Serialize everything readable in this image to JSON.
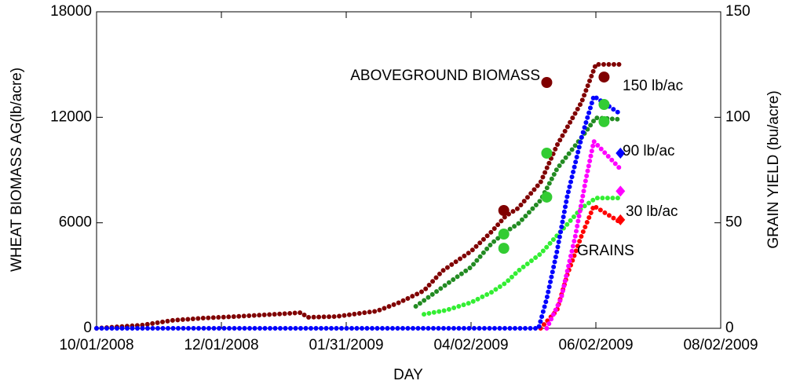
{
  "chart_data": {
    "type": "line",
    "xlabel": "DAY",
    "ylabel": "WHEAT BIOMASS AG(lb/acre)",
    "y2label": "GRAIN YIELD (bu/acre)",
    "xlim": [
      "10/01/2008",
      "08/02/2009"
    ],
    "xticks": [
      "10/01/2008",
      "12/01/2008",
      "01/31/2009",
      "04/02/2009",
      "06/02/2009",
      "08/02/2009"
    ],
    "ylim": [
      0,
      18000
    ],
    "yticks": [
      0,
      6000,
      12000,
      18000
    ],
    "y2lim": [
      0,
      150
    ],
    "y2ticks": [
      0,
      50,
      100,
      150
    ],
    "annotations": [
      "ABOVEGROUND BIOMASS",
      "150 lb/ac",
      "90 lb/ac",
      "30 lb/ac",
      "GRAINS"
    ],
    "series": [
      {
        "color": "#800000",
        "style": "dots",
        "axis": "y",
        "x": [
          "10/01/2008",
          "10/23/2008",
          "11/07/2008",
          "11/22/2008",
          "12/08/2008",
          "12/27/2008",
          "01/09/2009",
          "01/12/2009",
          "01/26/2009",
          "02/15/2009",
          "02/26/2009",
          "03/10/2009",
          "03/19/2009",
          "04/02/2009",
          "04/12/2009",
          "04/19/2009",
          "04/25/2009",
          "05/06/2009",
          "05/14/2009",
          "05/26/2009",
          "06/02/2009",
          "06/14/2009"
        ],
        "values": [
          0,
          180,
          450,
          580,
          670,
          800,
          890,
          625,
          670,
          980,
          1470,
          2140,
          3260,
          4380,
          5490,
          6390,
          6830,
          8310,
          10410,
          12860,
          15010,
          15010
        ]
      },
      {
        "color": "#228b22",
        "style": "dots",
        "axis": "y",
        "x": [
          "03/06/2009",
          "03/21/2009",
          "04/02/2009",
          "04/12/2009",
          "04/19/2009",
          "04/25/2009",
          "05/06/2009",
          "05/14/2009",
          "05/26/2009",
          "06/02/2009",
          "06/14/2009"
        ],
        "values": [
          1250,
          2500,
          3480,
          4820,
          5490,
          5940,
          7280,
          9070,
          10850,
          11970,
          11880
        ]
      },
      {
        "color": "#33ee33",
        "style": "dots",
        "axis": "y",
        "x": [
          "03/10/2009",
          "03/21/2009",
          "04/02/2009",
          "04/12/2009",
          "04/19/2009",
          "04/25/2009",
          "05/06/2009",
          "05/14/2009",
          "05/26/2009",
          "06/02/2009",
          "06/14/2009"
        ],
        "values": [
          800,
          1030,
          1470,
          2050,
          2590,
          3260,
          4240,
          5270,
          6830,
          7410,
          7410
        ]
      },
      {
        "color": "#ff0000",
        "style": "dots",
        "axis": "y2",
        "x": [
          "05/06/2009",
          "05/14/2009",
          "05/19/2009",
          "05/26/2009",
          "06/01/2009",
          "06/14/2009"
        ],
        "values": [
          0,
          8.6,
          25.3,
          43.9,
          58,
          50.2
        ]
      },
      {
        "color": "#ff00ff",
        "style": "dots",
        "axis": "y2",
        "x": [
          "05/09/2009",
          "05/16/2009",
          "05/23/2009",
          "05/28/2009",
          "06/01/2009",
          "06/14/2009"
        ],
        "values": [
          0,
          14.1,
          43.9,
          70,
          88.6,
          75.5
        ]
      },
      {
        "color": "#0000ff",
        "style": "dots",
        "axis": "y2",
        "x": [
          "10/01/2008",
          "05/05/2009",
          "05/09/2009",
          "05/14/2009",
          "05/19/2009",
          "05/26/2009",
          "06/01/2009",
          "06/14/2009"
        ],
        "values": [
          0,
          0,
          14.1,
          36.5,
          62.5,
          90.4,
          110,
          101.6
        ]
      },
      {
        "color": "#800000",
        "style": "circle",
        "axis": "y",
        "x": [
          "04/18/2009",
          "05/09/2009",
          "06/06/2009"
        ],
        "values": [
          6700,
          13980,
          14290
        ]
      },
      {
        "color": "#33cc33",
        "style": "circle",
        "axis": "y",
        "x": [
          "04/18/2009",
          "04/18/2009",
          "05/09/2009",
          "05/09/2009",
          "06/06/2009",
          "06/06/2009"
        ],
        "values": [
          5360,
          4550,
          9960,
          7460,
          12730,
          11750
        ]
      },
      {
        "color": "#0000ff",
        "style": "diamond",
        "axis": "y2",
        "x": [
          "06/14/2009"
        ],
        "values": [
          83
        ]
      },
      {
        "color": "#ff00ff",
        "style": "diamond",
        "axis": "y2",
        "x": [
          "06/14/2009"
        ],
        "values": [
          65
        ]
      },
      {
        "color": "#ff0000",
        "style": "diamond",
        "axis": "y2",
        "x": [
          "06/14/2009"
        ],
        "values": [
          51.4
        ]
      }
    ]
  }
}
